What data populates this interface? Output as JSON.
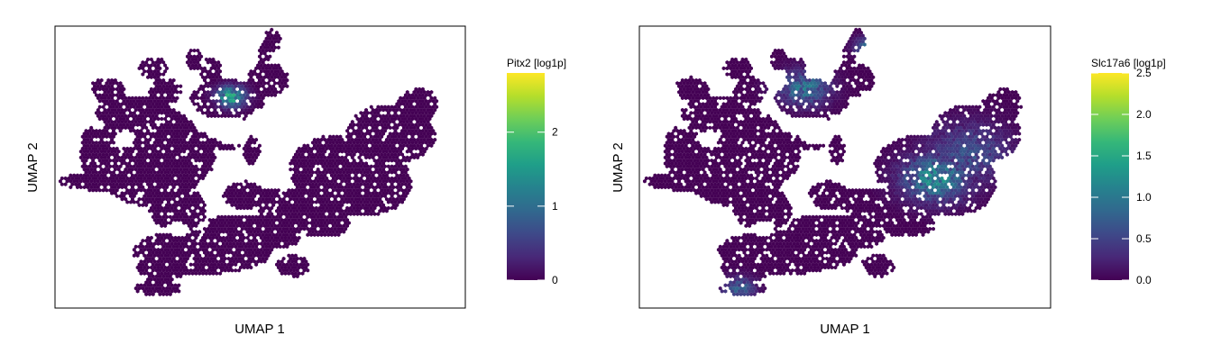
{
  "chart_data": [
    {
      "type": "heatmap",
      "subtype": "hexbin-umap",
      "xlabel": "UMAP 1",
      "ylabel": "UMAP 2",
      "legend": {
        "title": "Pitx2 [log1p]",
        "placement": "right",
        "range": [
          0,
          2.8
        ],
        "ticks": [
          0,
          1,
          2
        ],
        "tick_labels": [
          "0",
          "1",
          "2"
        ]
      },
      "colormap": "viridis",
      "hotspots": [
        {
          "u": 0.43,
          "v": 0.75,
          "value": 2.2,
          "spread": 0.035
        }
      ]
    },
    {
      "type": "heatmap",
      "subtype": "hexbin-umap",
      "xlabel": "UMAP 1",
      "ylabel": "UMAP 2",
      "legend": {
        "title": "Slc17a6 [log1p]",
        "placement": "right",
        "range": [
          0,
          2.5
        ],
        "ticks": [
          0,
          0.5,
          1,
          1.5,
          2,
          2.5
        ],
        "tick_labels": [
          "0.0",
          "0.5",
          "1.0",
          "1.5",
          "2.0",
          "2.5"
        ]
      },
      "colormap": "viridis",
      "hotspots": [
        {
          "u": 0.72,
          "v": 0.46,
          "value": 1.5,
          "spread": 0.08
        },
        {
          "u": 0.8,
          "v": 0.55,
          "value": 0.8,
          "spread": 0.1
        },
        {
          "u": 0.4,
          "v": 0.78,
          "value": 1.2,
          "spread": 0.06
        },
        {
          "u": 0.55,
          "v": 0.93,
          "value": 1.0,
          "spread": 0.03
        },
        {
          "u": 0.24,
          "v": 0.07,
          "value": 1.0,
          "spread": 0.04
        }
      ]
    }
  ],
  "colors": {
    "viridis": [
      "#440154",
      "#482878",
      "#3e4989",
      "#31688e",
      "#26828e",
      "#1f9e89",
      "#35b779",
      "#6ece58",
      "#b5de2b",
      "#fde725"
    ],
    "axis": "#000000",
    "background": "#ffffff"
  }
}
